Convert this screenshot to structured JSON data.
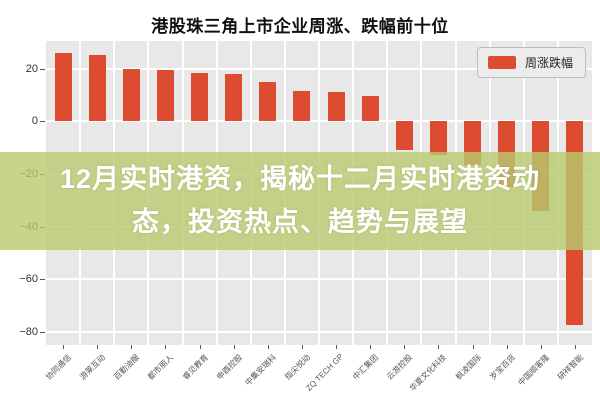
{
  "title": "港股珠三角上市企业周涨、跌幅前十位",
  "legend": {
    "label": "周涨跌幅",
    "swatch_color": "#dd4b30"
  },
  "overlay": {
    "full_text": "12月实时港资，揭秘十二月实时港资动态，投资热点、趋势与展望",
    "line1": "12月实时港资，揭秘十二月实时港资动",
    "line2": "态，投资热点、趋势与展望",
    "background_color": "#b8c96f",
    "background_opacity": 0.8,
    "text_color": "#ffffff"
  },
  "chart_data": {
    "type": "bar",
    "title": "港股珠三角上市企业周涨、跌幅前十位",
    "series_name": "周涨跌幅",
    "categories": [
      "协同通信",
      "游莱互动",
      "百勤油服",
      "都市丽人",
      "睿见教育",
      "申酉控股",
      "中集安瑞科",
      "指尖悦动",
      "ZQ TECH GP",
      "中汇集团",
      "云游控股",
      "华夏文化科技",
      "枫凌国际",
      "岁宝百货",
      "中国顺客隆",
      "研祥智能"
    ],
    "values": [
      26,
      25,
      20,
      19.5,
      18.5,
      18,
      15,
      11.5,
      11,
      9.5,
      -11,
      -13,
      -16.5,
      -25,
      -34,
      -77.5
    ],
    "bar_color": "#dd4b30",
    "plot_background": "#e8e8e8",
    "grid": true,
    "gridline_color": "#ffffff",
    "yticks": [
      20,
      0,
      -20,
      -40,
      -60,
      -80
    ],
    "ytick_labels": [
      "20",
      "0",
      "−20",
      "−40",
      "−60",
      "−80"
    ],
    "ylim": [
      -85,
      30.5
    ],
    "xlabel": "",
    "ylabel": "",
    "legend_position": "top-right"
  }
}
